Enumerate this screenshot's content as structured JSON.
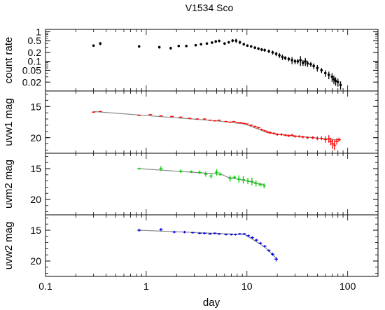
{
  "chart_data": {
    "title": "V1534 Sco",
    "type": "scatter",
    "xlabel": "day",
    "xscale": "log",
    "xlim": [
      0.1,
      200
    ],
    "xticks": [
      {
        "value": 0.1,
        "label": "0.1"
      },
      {
        "value": 1,
        "label": "1"
      },
      {
        "value": 10,
        "label": "10"
      },
      {
        "value": 100,
        "label": "100"
      }
    ],
    "panels": [
      {
        "ylabel": "count rate",
        "yscale": "log",
        "ylim": [
          0.01,
          1.2
        ],
        "inverted": false,
        "yticks": [
          {
            "value": 1,
            "label": "1"
          },
          {
            "value": 0.5,
            "label": "0.5"
          },
          {
            "value": 0.2,
            "label": "0.2"
          },
          {
            "value": 0.1,
            "label": "0.1"
          },
          {
            "value": 0.05,
            "label": "0.05"
          },
          {
            "value": 0.02,
            "label": "0.02"
          }
        ],
        "color": "#000000",
        "series": [
          {
            "x": [
              0.3,
              0.35,
              0.85,
              1.35,
              1.75,
              2.1,
              2.5,
              3.1,
              3.5,
              4.0,
              4.5,
              4.9,
              5.3,
              6.0,
              6.6,
              7.2,
              7.8,
              8.5,
              9.3,
              10.1,
              11.0,
              12.0,
              13.0,
              14.0,
              15.0,
              16.5,
              18.0,
              19.5,
              21.0,
              22.5,
              24.0,
              26.0,
              28.0,
              30.0,
              32.0,
              34.0,
              36.0,
              38.0,
              40.0,
              43.0,
              46.0,
              50.0,
              55.0,
              60.0,
              65.0,
              70.0,
              73.0,
              76.0,
              80.0,
              85.0
            ],
            "y": [
              0.34,
              0.4,
              0.32,
              0.3,
              0.28,
              0.33,
              0.33,
              0.35,
              0.38,
              0.4,
              0.43,
              0.47,
              0.49,
              0.4,
              0.44,
              0.5,
              0.5,
              0.44,
              0.38,
              0.34,
              0.32,
              0.29,
              0.27,
              0.25,
              0.24,
              0.22,
              0.2,
              0.18,
              0.16,
              0.14,
              0.13,
              0.12,
              0.11,
              0.1,
              0.1,
              0.11,
              0.09,
              0.1,
              0.085,
              0.08,
              0.07,
              0.06,
              0.05,
              0.04,
              0.035,
              0.03,
              0.025,
              0.022,
              0.02,
              0.016
            ],
            "err": [
              0.03,
              0.05,
              0.03,
              0.03,
              0.03,
              0.03,
              0.03,
              0.03,
              0.03,
              0.03,
              0.04,
              0.05,
              0.05,
              0.04,
              0.04,
              0.06,
              0.08,
              0.06,
              0.04,
              0.03,
              0.03,
              0.03,
              0.03,
              0.03,
              0.03,
              0.03,
              0.03,
              0.03,
              0.03,
              0.03,
              0.02,
              0.02,
              0.03,
              0.02,
              0.02,
              0.04,
              0.02,
              0.03,
              0.02,
              0.015,
              0.015,
              0.015,
              0.01,
              0.01,
              0.01,
              0.01,
              0.008,
              0.007,
              0.006,
              0.005
            ]
          }
        ]
      },
      {
        "ylabel": "uvw1 mag",
        "yscale": "linear",
        "ylim": [
          22.5,
          12.5
        ],
        "inverted": true,
        "yticks": [
          {
            "value": 15,
            "label": "15"
          },
          {
            "value": 20,
            "label": "20"
          }
        ],
        "color": "#ff0000",
        "series": [
          {
            "x": [
              0.3,
              0.35,
              0.85,
              1.1,
              1.4,
              1.8,
              2.2,
              2.7,
              3.2,
              3.8,
              4.3,
              4.8,
              5.3,
              6.2,
              6.8,
              7.4,
              8.0,
              8.6,
              9.3,
              10.0,
              11.0,
              12.0,
              13.0,
              14.0,
              15.0,
              16.0,
              17.0,
              18.5,
              20.0,
              22.0,
              24.0,
              26.0,
              28.0,
              30.0,
              33.0,
              36.0,
              40.0,
              45.0,
              50.0,
              55.0,
              60.0,
              65.0,
              68.0,
              71.0,
              74.0,
              78.0,
              82.0
            ],
            "y": [
              15.9,
              15.8,
              16.4,
              16.3,
              16.5,
              16.6,
              16.7,
              16.9,
              17.0,
              17.0,
              17.2,
              17.3,
              17.2,
              17.4,
              17.5,
              17.4,
              17.6,
              17.6,
              17.7,
              17.8,
              18.0,
              18.2,
              18.4,
              18.7,
              18.9,
              19.1,
              19.2,
              19.3,
              19.5,
              19.5,
              19.6,
              19.7,
              19.6,
              19.8,
              19.8,
              19.9,
              20.0,
              20.0,
              20.1,
              20.1,
              20.3,
              20.2,
              20.6,
              21.0,
              21.2,
              20.6,
              20.3
            ],
            "err": [
              0.1,
              0.1,
              0.1,
              0.1,
              0.1,
              0.1,
              0.1,
              0.1,
              0.1,
              0.1,
              0.1,
              0.1,
              0.1,
              0.1,
              0.1,
              0.1,
              0.1,
              0.1,
              0.1,
              0.1,
              0.15,
              0.15,
              0.15,
              0.15,
              0.15,
              0.15,
              0.2,
              0.2,
              0.2,
              0.2,
              0.2,
              0.2,
              0.2,
              0.2,
              0.2,
              0.2,
              0.2,
              0.25,
              0.3,
              0.3,
              0.5,
              0.6,
              0.6,
              0.8,
              0.8,
              0.5,
              0.3
            ]
          }
        ],
        "fit": {
          "x": [
            0.3,
            5.0,
            9.5,
            16.0,
            22.0,
            85.0
          ],
          "y": [
            15.8,
            17.3,
            17.8,
            19.2,
            19.5,
            20.4
          ]
        }
      },
      {
        "ylabel": "uvm2 mag",
        "yscale": "linear",
        "ylim": [
          22.5,
          12.5
        ],
        "inverted": true,
        "yticks": [
          {
            "value": 15,
            "label": "15"
          },
          {
            "value": 20,
            "label": "20"
          }
        ],
        "color": "#00cc00",
        "series": [
          {
            "x": [
              0.85,
              1.4,
              2.2,
              2.8,
              3.4,
              3.9,
              4.4,
              5.0,
              5.4,
              6.8,
              7.5,
              8.3,
              9.2,
              10.2,
              11.2,
              12.3,
              13.5,
              14.8
            ],
            "y": [
              15.0,
              15.0,
              15.4,
              15.5,
              15.6,
              15.9,
              16.2,
              15.6,
              15.9,
              16.6,
              16.4,
              16.7,
              16.8,
              17.0,
              17.1,
              17.4,
              17.6,
              17.8
            ],
            "err": [
              0.15,
              0.4,
              0.3,
              0.2,
              0.3,
              0.4,
              0.4,
              0.5,
              0.3,
              0.5,
              0.3,
              0.6,
              0.6,
              0.5,
              0.6,
              0.5,
              0.3,
              0.4
            ]
          }
        ],
        "fit": {
          "x": [
            0.85,
            5.5,
            6.5,
            10.0,
            15.0
          ],
          "y": [
            15.0,
            15.9,
            16.4,
            17.0,
            17.6
          ]
        }
      },
      {
        "ylabel": "uvw2 mag",
        "yscale": "linear",
        "ylim": [
          22.5,
          12.5
        ],
        "inverted": true,
        "yticks": [
          {
            "value": 15,
            "label": "15"
          },
          {
            "value": 20,
            "label": "20"
          }
        ],
        "color": "#0000dd",
        "series": [
          {
            "x": [
              0.85,
              1.4,
              1.9,
              2.4,
              2.9,
              3.4,
              3.8,
              4.3,
              4.8,
              5.3,
              6.2,
              7.0,
              7.7,
              8.5,
              9.4,
              10.3,
              11.3,
              12.4,
              13.6,
              15.0,
              16.5,
              18.0,
              19.5
            ],
            "y": [
              15.0,
              14.9,
              15.3,
              15.3,
              15.4,
              15.5,
              15.5,
              15.6,
              15.5,
              15.6,
              15.7,
              15.7,
              15.7,
              15.6,
              15.6,
              15.9,
              16.2,
              16.6,
              17.1,
              17.6,
              18.3,
              18.9,
              19.7
            ],
            "err": [
              0.25,
              0.25,
              0.2,
              0.2,
              0.15,
              0.15,
              0.15,
              0.15,
              0.15,
              0.15,
              0.15,
              0.15,
              0.15,
              0.15,
              0.15,
              0.2,
              0.2,
              0.2,
              0.2,
              0.2,
              0.2,
              0.25,
              0.35
            ]
          }
        ],
        "fit": {
          "x": [
            0.85,
            9.5,
            15.0,
            20.0
          ],
          "y": [
            15.0,
            15.7,
            17.7,
            19.7
          ]
        }
      }
    ]
  }
}
